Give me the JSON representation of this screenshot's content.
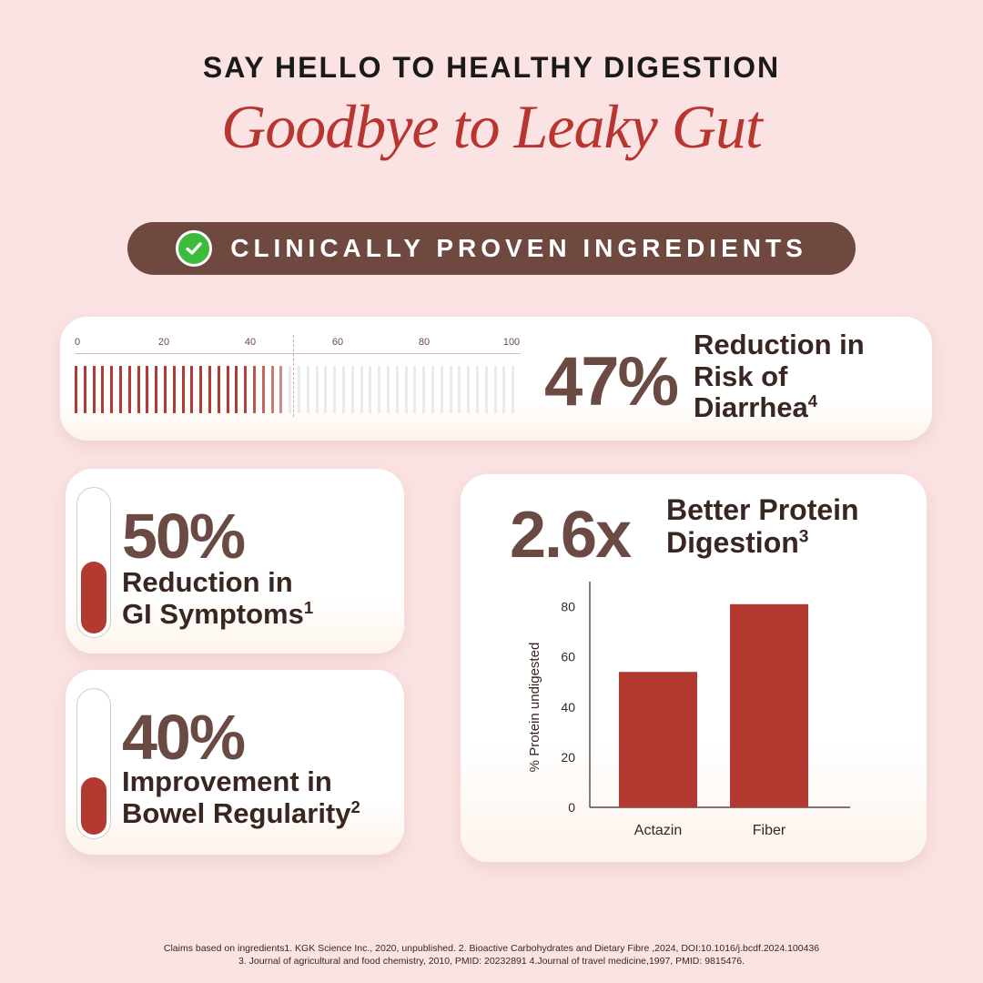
{
  "header": {
    "kicker": "SAY HELLO TO HEALTHY DIGESTION",
    "headline": "Goodbye to Leaky Gut"
  },
  "badge": {
    "label": "CLINICALLY PROVEN INGREDIENTS",
    "icon": "check-circle-icon",
    "icon_color": "#3dbb3d"
  },
  "colors": {
    "accent_red": "#b23a30",
    "brown": "#6f4840",
    "background": "#fbe3e3"
  },
  "stats": {
    "diarrhea": {
      "value": "47%",
      "desc_line1": "Reduction in",
      "desc_line2": "Risk of",
      "desc_line3": "Diarrhea",
      "ref": "4",
      "percent": 47,
      "scale_labels": [
        "0",
        "20",
        "40",
        "60",
        "80",
        "100"
      ]
    },
    "gi": {
      "value": "50%",
      "desc_line1": "Reduction in",
      "desc_line2": "GI Symptoms",
      "ref": "1",
      "fill_fraction": 0.5
    },
    "bowel": {
      "value": "40%",
      "desc_line1": "Improvement in",
      "desc_line2": "Bowel Regularity",
      "ref": "2",
      "fill_fraction": 0.4
    },
    "protein": {
      "value": "2.6x",
      "desc_line1": "Better Protein",
      "desc_line2": "Digestion",
      "ref": "3"
    }
  },
  "chart_data": {
    "type": "bar",
    "categories": [
      "Actazin",
      "Fiber"
    ],
    "values": [
      54,
      81
    ],
    "title": "",
    "xlabel": "",
    "ylabel": "% Protein undigested",
    "ylim": [
      0,
      90
    ],
    "yticks": [
      0,
      20,
      40,
      60,
      80
    ],
    "grid": false,
    "bar_color": "#b23a30"
  },
  "footer": {
    "line1": "Claims based on ingredients1. KGK Science Inc., 2020, unpublished. 2. Bioactive Carbohydrates and Dietary Fibre ,2024, DOI:10.1016/j.bcdf.2024.100436",
    "line2": "3. Journal of agricultural and food chemistry, 2010, PMID: 20232891 4.Journal of travel medicine,1997, PMID: 9815476."
  }
}
